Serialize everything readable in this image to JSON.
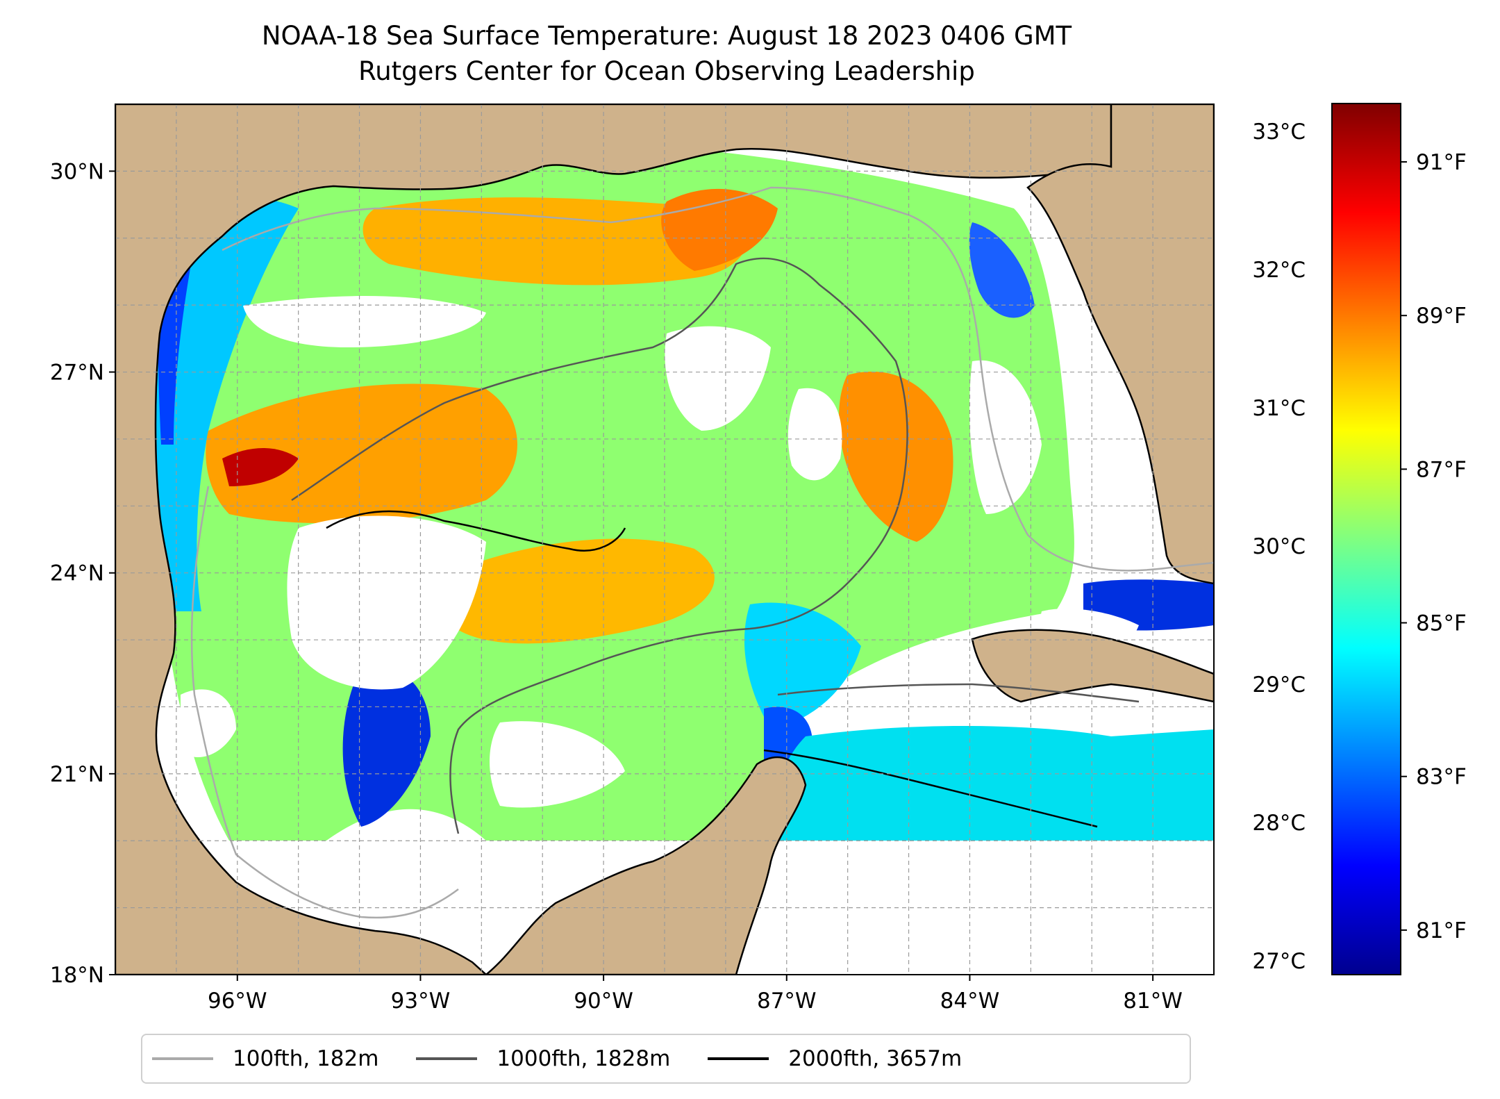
{
  "title": {
    "line1": "NOAA-18 Sea Surface Temperature: August 18 2023 0406 GMT",
    "line2": "Rutgers Center for Ocean Observing Leadership"
  },
  "map": {
    "lon_range": [
      -98.0,
      -80.0
    ],
    "lat_range": [
      18.0,
      31.0
    ],
    "lon_ticks": [
      {
        "value": -96,
        "label": "96°W"
      },
      {
        "value": -93,
        "label": "93°W"
      },
      {
        "value": -90,
        "label": "90°W"
      },
      {
        "value": -87,
        "label": "87°W"
      },
      {
        "value": -84,
        "label": "84°W"
      },
      {
        "value": -81,
        "label": "81°W"
      }
    ],
    "lat_ticks": [
      {
        "value": 18,
        "label": "18°N"
      },
      {
        "value": 21,
        "label": "21°N"
      },
      {
        "value": 24,
        "label": "24°N"
      },
      {
        "value": 27,
        "label": "27°N"
      },
      {
        "value": 30,
        "label": "30°N"
      }
    ],
    "land_color": "#cfb28b",
    "ocean_color": "#ffffff",
    "grid": true
  },
  "colorbar": {
    "celsius_range": [
      26.9,
      33.2
    ],
    "celsius_ticks": [
      {
        "value": 27,
        "label": "27°C"
      },
      {
        "value": 28,
        "label": "28°C"
      },
      {
        "value": 29,
        "label": "29°C"
      },
      {
        "value": 30,
        "label": "30°C"
      },
      {
        "value": 31,
        "label": "31°C"
      },
      {
        "value": 32,
        "label": "32°C"
      },
      {
        "value": 33,
        "label": "33°C"
      }
    ],
    "fahrenheit_ticks": [
      {
        "value": 81,
        "label": "81°F"
      },
      {
        "value": 83,
        "label": "83°F"
      },
      {
        "value": 85,
        "label": "85°F"
      },
      {
        "value": 87,
        "label": "87°F"
      },
      {
        "value": 89,
        "label": "89°F"
      },
      {
        "value": 91,
        "label": "91°F"
      }
    ],
    "colormap": [
      "#00008f",
      "#0000ff",
      "#0080ff",
      "#00ffff",
      "#80ff80",
      "#ffff00",
      "#ff8000",
      "#ff0000",
      "#800000"
    ]
  },
  "legend": {
    "items": [
      {
        "label": "100fth, 182m",
        "color": "#aaaaaa"
      },
      {
        "label": "1000fth, 1828m",
        "color": "#555555"
      },
      {
        "label": "2000fth, 3657m",
        "color": "#000000"
      }
    ]
  }
}
